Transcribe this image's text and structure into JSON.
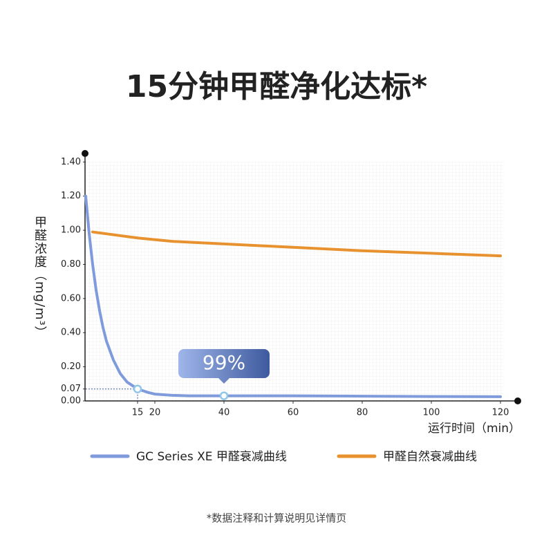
{
  "chart_data": {
    "type": "line",
    "title": "15分钟甲醛净化达标*",
    "y_label": "甲醛浓度（mg/m³）",
    "x_label": "运行时间（min）",
    "footnote": "*数据注释和计算说明见详情页",
    "xlim": [
      0,
      125
    ],
    "ylim": [
      0,
      1.45
    ],
    "xticks": [
      15,
      20,
      40,
      60,
      80,
      100,
      120
    ],
    "yticks": [
      {
        "value": 0,
        "label": "0.00"
      },
      0.07,
      {
        "value": 0.2,
        "label": "0.20"
      },
      {
        "value": 0.4,
        "label": "0.40"
      },
      {
        "value": 0.6,
        "label": "0.60"
      },
      {
        "value": 0.8,
        "label": "0.80"
      },
      {
        "value": 1,
        "label": "1.00"
      },
      {
        "value": 1.2,
        "label": "1.20"
      },
      {
        "value": 1.4,
        "label": "1.40"
      }
    ],
    "grid": true,
    "series": [
      {
        "name": "GC Series XE 甲醛衰减曲线",
        "color": "#7f9bdc",
        "x": [
          0,
          1,
          2,
          3,
          4,
          5,
          6,
          8,
          10,
          12,
          15,
          18,
          20,
          25,
          30,
          40,
          60,
          80,
          100,
          120
        ],
        "values": [
          1.2,
          0.98,
          0.8,
          0.65,
          0.53,
          0.43,
          0.35,
          0.24,
          0.16,
          0.11,
          0.07,
          0.05,
          0.04,
          0.033,
          0.03,
          0.03,
          0.03,
          0.028,
          0.026,
          0.025
        ],
        "highlight_x": [
          15,
          40
        ]
      },
      {
        "name": "甲醛自然衰减曲线",
        "color": "#e8912f",
        "x": [
          2,
          15,
          25,
          40,
          60,
          80,
          100,
          120
        ],
        "values": [
          0.99,
          0.955,
          0.935,
          0.92,
          0.9,
          0.88,
          0.865,
          0.85
        ]
      }
    ],
    "annotation": {
      "text": "99%",
      "x": 40
    }
  }
}
